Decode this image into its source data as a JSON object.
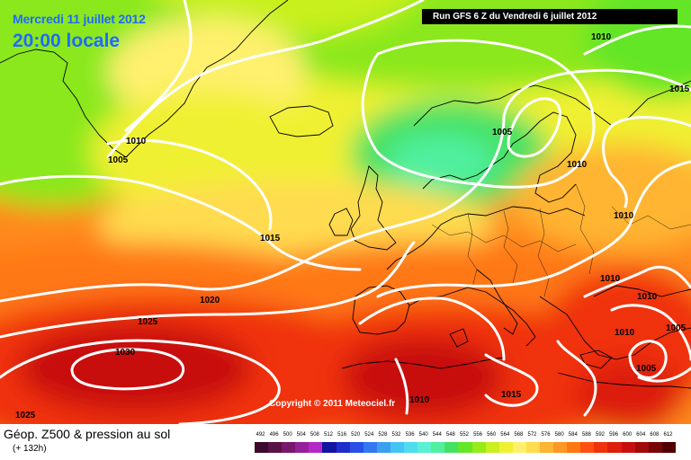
{
  "header": {
    "date": "Mercredi 11 juillet 2012",
    "time": "20:00 locale",
    "run": "Run GFS 6 Z du Vendredi 6 juillet 2012"
  },
  "copyright": "Copyright © 2011 Meteociel.fr",
  "footer": {
    "title": "Géop. Z500 & pression au sol",
    "subtitle": "(+ 132h)"
  },
  "legend": {
    "values": [
      "492",
      "496",
      "500",
      "504",
      "508",
      "512",
      "516",
      "520",
      "524",
      "528",
      "532",
      "536",
      "540",
      "544",
      "548",
      "552",
      "556",
      "560",
      "564",
      "568",
      "572",
      "576",
      "580",
      "584",
      "588",
      "592",
      "596",
      "600",
      "604",
      "608",
      "612"
    ],
    "colors": [
      "#3c0a2c",
      "#5a1146",
      "#78186a",
      "#96209a",
      "#b428c8",
      "#1414a0",
      "#1e2dcc",
      "#2850e6",
      "#3278f0",
      "#3ca0f0",
      "#46c3f5",
      "#50dcf0",
      "#5af0d2",
      "#50f0a0",
      "#46e164",
      "#64e628",
      "#96eb19",
      "#c8f01e",
      "#f0f032",
      "#fff06e",
      "#ffdc50",
      "#ffb432",
      "#ff9628",
      "#ff7814",
      "#ff500f",
      "#f0320a",
      "#dc1e0a",
      "#c80f0f",
      "#a00a0a",
      "#780505",
      "#500000"
    ]
  },
  "map": {
    "isobars": [
      {
        "label": "1010",
        "pos": "top-right"
      },
      {
        "label": "1015",
        "pos": "top-right"
      },
      {
        "label": "1010",
        "pos": "greenland"
      },
      {
        "label": "1005",
        "pos": "greenland"
      },
      {
        "label": "1005",
        "pos": "scandinavia"
      },
      {
        "label": "1010",
        "pos": "baltic"
      },
      {
        "label": "1010",
        "pos": "russia"
      },
      {
        "label": "1015",
        "pos": "mid-atlantic"
      },
      {
        "label": "1020",
        "pos": "atlantic"
      },
      {
        "label": "1025",
        "pos": "atlantic"
      },
      {
        "label": "1030",
        "pos": "azores-high"
      },
      {
        "label": "1025",
        "pos": "bottom-left"
      },
      {
        "label": "1010",
        "pos": "balkans"
      },
      {
        "label": "1010",
        "pos": "black-sea"
      },
      {
        "label": "1010",
        "pos": "greece"
      },
      {
        "label": "1005",
        "pos": "turkey"
      },
      {
        "label": "1005",
        "pos": "east-med"
      },
      {
        "label": "1010",
        "pos": "north-africa"
      },
      {
        "label": "1015",
        "pos": "north-africa"
      }
    ]
  }
}
